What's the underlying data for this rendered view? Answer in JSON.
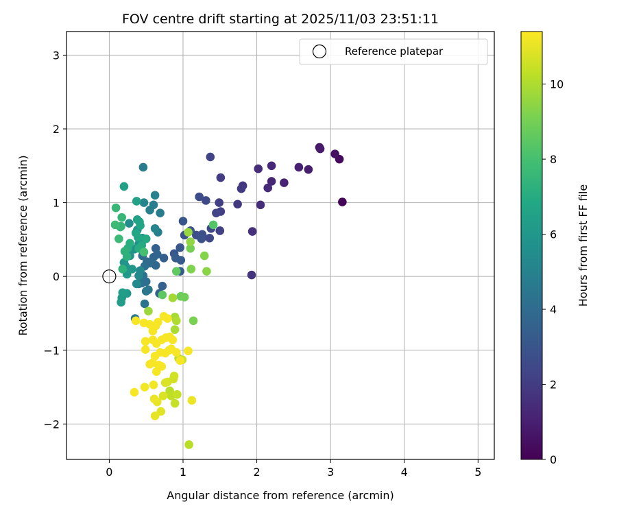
{
  "chart_data": {
    "type": "scatter",
    "title": "FOV centre drift starting at 2025/11/03 23:51:11",
    "xlabel": "Angular distance from reference (arcmin)",
    "ylabel": "Rotation from reference (arcmin)",
    "xlim": [
      -0.58,
      5.22
    ],
    "ylim": [
      -2.48,
      3.32
    ],
    "xticks": [
      0,
      1,
      2,
      3,
      4,
      5
    ],
    "yticks": [
      -2,
      -1,
      0,
      1,
      2,
      3
    ],
    "xtick_labels": [
      "0",
      "1",
      "2",
      "3",
      "4",
      "5"
    ],
    "ytick_labels": [
      "−2",
      "−1",
      "0",
      "1",
      "2",
      "3"
    ],
    "grid": true,
    "legend": {
      "position": "top-right",
      "entries": [
        {
          "label": "Reference platepar",
          "marker": "open-circle"
        }
      ]
    },
    "reference_point": {
      "x": 0,
      "y": 0
    },
    "colorbar": {
      "label": "Hours from first FF file",
      "colormap": "viridis",
      "range": [
        0,
        11.4
      ],
      "ticks": [
        0,
        2,
        4,
        6,
        8,
        10
      ],
      "tick_labels": [
        "0",
        "2",
        "4",
        "6",
        "8",
        "10"
      ]
    },
    "series": [
      {
        "columns": [
          "x",
          "y",
          "hours"
        ],
        "points": [
          [
            3.16,
            1.01,
            0.1
          ],
          [
            3.12,
            1.59,
            0.3
          ],
          [
            3.06,
            1.66,
            0.5
          ],
          [
            2.85,
            1.75,
            0.6
          ],
          [
            2.86,
            1.73,
            0.8
          ],
          [
            2.7,
            1.45,
            0.9
          ],
          [
            2.57,
            1.48,
            1.0
          ],
          [
            2.37,
            1.27,
            1.1
          ],
          [
            2.2,
            1.29,
            1.2
          ],
          [
            2.2,
            1.5,
            1.3
          ],
          [
            2.15,
            1.2,
            1.4
          ],
          [
            2.05,
            0.97,
            1.5
          ],
          [
            2.02,
            1.46,
            1.5
          ],
          [
            1.94,
            0.61,
            1.6
          ],
          [
            1.93,
            0.02,
            1.7
          ],
          [
            1.81,
            1.23,
            1.8
          ],
          [
            1.79,
            1.19,
            1.9
          ],
          [
            1.74,
            0.98,
            1.9
          ],
          [
            1.51,
            1.34,
            2.0
          ],
          [
            1.51,
            0.88,
            2.1
          ],
          [
            1.49,
            1.0,
            2.1
          ],
          [
            1.5,
            0.62,
            2.2
          ],
          [
            1.45,
            0.86,
            2.3
          ],
          [
            1.37,
            1.62,
            2.3
          ],
          [
            1.38,
            0.65,
            2.4
          ],
          [
            1.36,
            0.52,
            2.5
          ],
          [
            1.31,
            1.03,
            2.5
          ],
          [
            1.22,
            1.08,
            2.6
          ],
          [
            1.26,
            0.57,
            2.7
          ],
          [
            1.18,
            0.56,
            2.7
          ],
          [
            1.25,
            0.51,
            2.8
          ],
          [
            1.1,
            0.62,
            2.9
          ],
          [
            1.02,
            0.56,
            2.9
          ],
          [
            1.0,
            0.75,
            3.0
          ],
          [
            0.96,
            0.39,
            3.1
          ],
          [
            0.88,
            0.31,
            3.1
          ],
          [
            0.97,
            0.22,
            3.2
          ],
          [
            0.9,
            0.25,
            3.3
          ],
          [
            0.96,
            0.07,
            3.3
          ],
          [
            0.74,
            0.25,
            3.4
          ],
          [
            0.72,
            -0.13,
            3.5
          ],
          [
            0.63,
            0.38,
            3.5
          ],
          [
            0.68,
            -0.23,
            3.6
          ],
          [
            0.65,
            0.3,
            3.7
          ],
          [
            0.6,
            0.26,
            3.7
          ],
          [
            0.63,
            0.15,
            3.8
          ],
          [
            0.55,
            0.18,
            3.9
          ],
          [
            0.51,
            0.2,
            3.9
          ],
          [
            0.45,
            0.28,
            4.0
          ],
          [
            0.48,
            0.14,
            4.1
          ],
          [
            0.5,
            -0.07,
            4.1
          ],
          [
            0.44,
            -0.09,
            4.2
          ],
          [
            0.46,
            0.01,
            4.3
          ],
          [
            0.4,
            -0.1,
            4.3
          ],
          [
            0.48,
            -0.37,
            4.4
          ],
          [
            0.53,
            -0.18,
            4.5
          ],
          [
            0.5,
            -0.2,
            4.5
          ],
          [
            0.35,
            -0.57,
            4.6
          ],
          [
            0.46,
            1.48,
            4.7
          ],
          [
            0.69,
            0.86,
            4.7
          ],
          [
            0.6,
            0.97,
            4.8
          ],
          [
            0.55,
            0.9,
            4.9
          ],
          [
            0.66,
            0.6,
            4.9
          ],
          [
            0.62,
            1.1,
            5.0
          ],
          [
            0.47,
            1.0,
            5.1
          ],
          [
            0.62,
            0.65,
            5.1
          ],
          [
            0.45,
            0.48,
            5.2
          ],
          [
            0.42,
            0.08,
            5.3
          ],
          [
            0.4,
            0.01,
            5.3
          ],
          [
            0.37,
            -0.1,
            5.4
          ],
          [
            0.27,
            0.72,
            5.5
          ],
          [
            0.38,
            0.63,
            5.5
          ],
          [
            0.45,
            0.52,
            5.6
          ],
          [
            0.4,
            0.44,
            5.7
          ],
          [
            0.34,
            0.37,
            5.7
          ],
          [
            0.28,
            0.28,
            5.8
          ],
          [
            0.22,
            0.14,
            5.9
          ],
          [
            0.2,
            0.19,
            5.9
          ],
          [
            0.31,
            0.1,
            6.0
          ],
          [
            0.24,
            0.03,
            6.1
          ],
          [
            0.24,
            -0.23,
            6.1
          ],
          [
            0.17,
            -0.29,
            6.2
          ],
          [
            0.18,
            -0.22,
            6.3
          ],
          [
            0.16,
            -0.35,
            6.3
          ],
          [
            0.2,
            1.22,
            6.4
          ],
          [
            0.37,
            1.02,
            6.5
          ],
          [
            0.38,
            0.77,
            6.5
          ],
          [
            0.41,
            0.74,
            6.6
          ],
          [
            0.42,
            0.69,
            6.7
          ],
          [
            0.36,
            0.59,
            6.7
          ],
          [
            0.39,
            0.53,
            6.8
          ],
          [
            0.5,
            0.51,
            6.9
          ],
          [
            0.44,
            0.42,
            6.9
          ],
          [
            0.4,
            0.38,
            7.0
          ],
          [
            0.28,
            0.45,
            7.1
          ],
          [
            0.25,
            0.38,
            7.1
          ],
          [
            0.24,
            0.27,
            7.2
          ],
          [
            0.21,
            0.34,
            7.3
          ],
          [
            0.18,
            0.1,
            7.3
          ],
          [
            0.15,
            0.67,
            7.4
          ],
          [
            0.17,
            0.8,
            7.5
          ],
          [
            0.16,
            0.68,
            7.5
          ],
          [
            0.09,
            0.93,
            7.6
          ],
          [
            0.08,
            0.7,
            7.7
          ],
          [
            0.13,
            0.51,
            7.7
          ],
          [
            0.47,
            0.33,
            8.0
          ],
          [
            1.41,
            0.7,
            8.3
          ],
          [
            0.72,
            -0.25,
            8.5
          ],
          [
            0.91,
            0.07,
            8.6
          ],
          [
            0.97,
            -0.27,
            8.8
          ],
          [
            1.02,
            -0.28,
            8.9
          ],
          [
            1.1,
            0.38,
            9.0
          ],
          [
            1.14,
            -0.6,
            9.1
          ],
          [
            1.11,
            0.1,
            9.2
          ],
          [
            1.29,
            0.28,
            9.3
          ],
          [
            1.32,
            0.07,
            9.4
          ],
          [
            1.1,
            0.47,
            9.5
          ],
          [
            1.07,
            0.6,
            9.6
          ],
          [
            0.53,
            -0.47,
            9.7
          ],
          [
            0.86,
            -0.29,
            9.8
          ],
          [
            0.89,
            -0.55,
            9.9
          ],
          [
            0.89,
            -0.72,
            9.9
          ],
          [
            0.91,
            -0.6,
            10.0
          ],
          [
            0.94,
            -1.11,
            10.1
          ],
          [
            1.08,
            -2.28,
            10.2
          ],
          [
            0.82,
            -1.55,
            10.2
          ],
          [
            0.84,
            -1.62,
            10.3
          ],
          [
            0.89,
            -1.72,
            10.4
          ],
          [
            0.92,
            -1.6,
            10.4
          ],
          [
            0.99,
            -1.13,
            10.5
          ],
          [
            0.87,
            -1.39,
            10.6
          ],
          [
            0.88,
            -1.35,
            10.6
          ],
          [
            0.79,
            -1.43,
            10.7
          ],
          [
            0.76,
            -1.44,
            10.8
          ],
          [
            0.73,
            -1.62,
            10.8
          ],
          [
            0.7,
            -1.83,
            10.9
          ],
          [
            0.62,
            -1.89,
            11.0
          ],
          [
            0.65,
            -1.7,
            11.0
          ],
          [
            0.61,
            -1.66,
            11.1
          ],
          [
            1.12,
            -1.68,
            11.1
          ],
          [
            0.48,
            -1.5,
            11.2
          ],
          [
            0.6,
            -1.47,
            11.2
          ],
          [
            0.34,
            -1.57,
            11.3
          ],
          [
            0.49,
            -0.99,
            11.3
          ],
          [
            0.55,
            -1.19,
            11.3
          ],
          [
            0.59,
            -1.17,
            11.3
          ],
          [
            0.67,
            -1.2,
            11.3
          ],
          [
            0.64,
            -1.29,
            11.3
          ],
          [
            0.71,
            -1.22,
            11.3
          ],
          [
            0.62,
            -1.08,
            11.3
          ],
          [
            0.69,
            -1.03,
            11.3
          ],
          [
            0.76,
            -1.04,
            11.3
          ],
          [
            0.84,
            -0.98,
            11.3
          ],
          [
            0.81,
            -1.0,
            11.3
          ],
          [
            0.91,
            -1.03,
            11.3
          ],
          [
            0.96,
            -1.14,
            11.3
          ],
          [
            1.07,
            -1.01,
            11.3
          ],
          [
            0.49,
            -0.88,
            11.3
          ],
          [
            0.59,
            -0.86,
            11.3
          ],
          [
            0.64,
            -0.91,
            11.3
          ],
          [
            0.71,
            -0.86,
            11.3
          ],
          [
            0.77,
            -0.83,
            11.3
          ],
          [
            0.82,
            -0.82,
            11.3
          ],
          [
            0.86,
            -0.86,
            11.3
          ],
          [
            0.59,
            -0.74,
            11.3
          ],
          [
            0.66,
            -0.62,
            11.3
          ],
          [
            0.74,
            -0.54,
            11.3
          ],
          [
            0.79,
            -0.57,
            11.3
          ],
          [
            0.36,
            -0.6,
            11.3
          ],
          [
            0.47,
            -0.63,
            11.3
          ],
          [
            0.55,
            -0.65,
            11.3
          ],
          [
            0.63,
            -0.67,
            11.3
          ]
        ]
      }
    ]
  }
}
